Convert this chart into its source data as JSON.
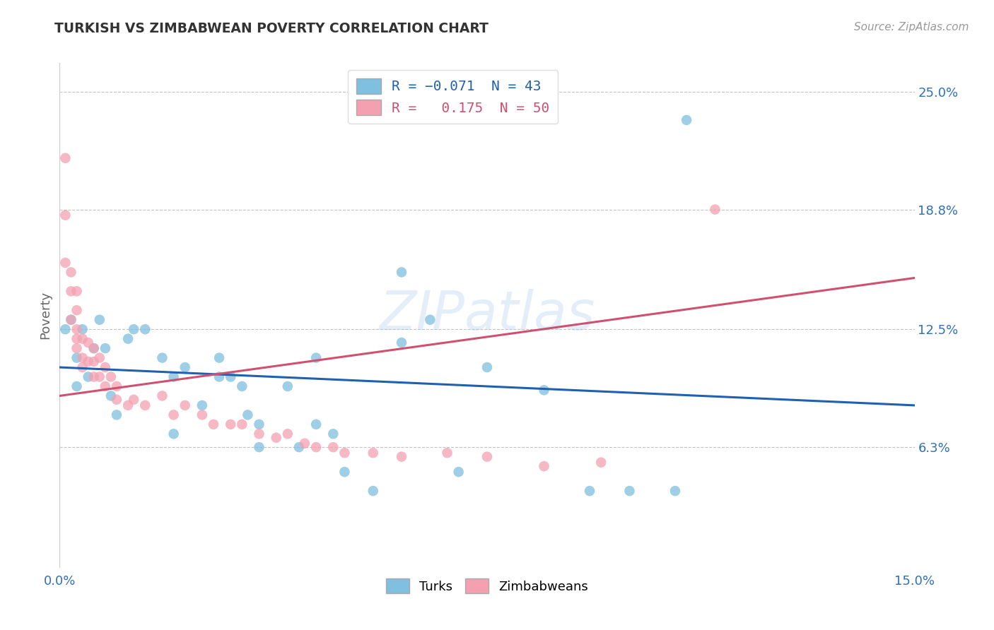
{
  "title": "TURKISH VS ZIMBABWEAN POVERTY CORRELATION CHART",
  "source": "Source: ZipAtlas.com",
  "ylabel": "Poverty",
  "x_min": 0.0,
  "x_max": 0.15,
  "y_min": 0.0,
  "y_max": 0.265,
  "y_tick_labels_right": [
    "6.3%",
    "12.5%",
    "18.8%",
    "25.0%"
  ],
  "y_tick_vals_right": [
    0.063,
    0.125,
    0.188,
    0.25
  ],
  "blue_color": "#7fbfdf",
  "pink_color": "#f4a0b0",
  "line_blue": "#2060b0",
  "line_pink": "#d05070",
  "watermark": "ZIPatlas",
  "turks_x": [
    0.001,
    0.002,
    0.003,
    0.003,
    0.004,
    0.005,
    0.006,
    0.007,
    0.008,
    0.009,
    0.01,
    0.012,
    0.013,
    0.015,
    0.018,
    0.02,
    0.022,
    0.025,
    0.028,
    0.03,
    0.032,
    0.033,
    0.035,
    0.04,
    0.042,
    0.045,
    0.048,
    0.05,
    0.055,
    0.06,
    0.065,
    0.07,
    0.075,
    0.085,
    0.093,
    0.1,
    0.108,
    0.035,
    0.028,
    0.02,
    0.06,
    0.045,
    0.11
  ],
  "turks_y": [
    0.125,
    0.13,
    0.11,
    0.095,
    0.125,
    0.1,
    0.115,
    0.13,
    0.115,
    0.09,
    0.08,
    0.12,
    0.125,
    0.125,
    0.11,
    0.07,
    0.105,
    0.085,
    0.11,
    0.1,
    0.095,
    0.08,
    0.075,
    0.095,
    0.063,
    0.075,
    0.07,
    0.05,
    0.04,
    0.118,
    0.13,
    0.05,
    0.105,
    0.093,
    0.04,
    0.04,
    0.04,
    0.063,
    0.1,
    0.1,
    0.155,
    0.11,
    0.235
  ],
  "zimbabweans_x": [
    0.001,
    0.001,
    0.001,
    0.002,
    0.002,
    0.002,
    0.003,
    0.003,
    0.003,
    0.003,
    0.003,
    0.004,
    0.004,
    0.004,
    0.005,
    0.005,
    0.006,
    0.006,
    0.006,
    0.007,
    0.007,
    0.008,
    0.008,
    0.009,
    0.01,
    0.01,
    0.012,
    0.013,
    0.015,
    0.018,
    0.02,
    0.022,
    0.025,
    0.027,
    0.03,
    0.032,
    0.035,
    0.038,
    0.04,
    0.043,
    0.045,
    0.048,
    0.05,
    0.055,
    0.06,
    0.068,
    0.075,
    0.085,
    0.095,
    0.115
  ],
  "zimbabweans_y": [
    0.215,
    0.185,
    0.16,
    0.155,
    0.145,
    0.13,
    0.145,
    0.135,
    0.125,
    0.12,
    0.115,
    0.12,
    0.11,
    0.105,
    0.118,
    0.108,
    0.115,
    0.108,
    0.1,
    0.11,
    0.1,
    0.105,
    0.095,
    0.1,
    0.095,
    0.088,
    0.085,
    0.088,
    0.085,
    0.09,
    0.08,
    0.085,
    0.08,
    0.075,
    0.075,
    0.075,
    0.07,
    0.068,
    0.07,
    0.065,
    0.063,
    0.063,
    0.06,
    0.06,
    0.058,
    0.06,
    0.058,
    0.053,
    0.055,
    0.188
  ],
  "blue_line_x0": 0.0,
  "blue_line_y0": 0.105,
  "blue_line_x1": 0.15,
  "blue_line_y1": 0.085,
  "pink_line_x0": 0.0,
  "pink_line_y0": 0.09,
  "pink_line_x1": 0.15,
  "pink_line_y1": 0.152
}
